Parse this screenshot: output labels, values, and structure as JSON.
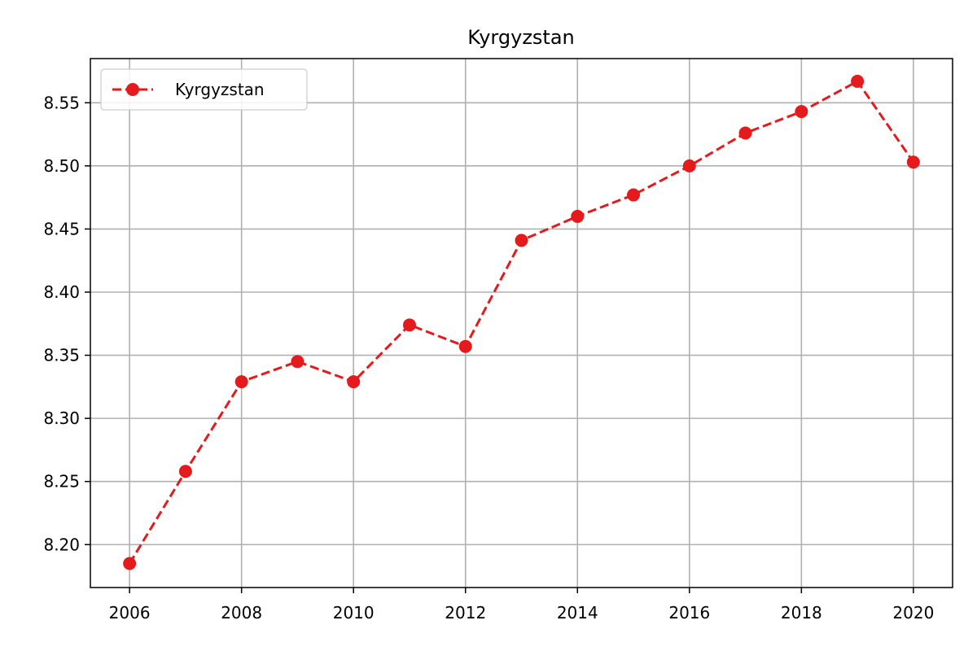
{
  "chart_data": {
    "type": "line",
    "title": "Kyrgyzstan",
    "xlabel": "",
    "ylabel": "",
    "x": [
      2006,
      2007,
      2008,
      2009,
      2010,
      2011,
      2012,
      2013,
      2014,
      2015,
      2016,
      2017,
      2018,
      2019,
      2020
    ],
    "series": [
      {
        "name": "Kyrgyzstan",
        "values": [
          8.185,
          8.258,
          8.329,
          8.345,
          8.329,
          8.374,
          8.357,
          8.441,
          8.46,
          8.477,
          8.5,
          8.526,
          8.543,
          8.567,
          8.503
        ],
        "color": "#e41a1c",
        "line_style": "dashed",
        "marker": "circle"
      }
    ],
    "xlim": [
      2005.3,
      2020.7
    ],
    "ylim": [
      8.166,
      8.585
    ],
    "xticks": [
      2006,
      2008,
      2010,
      2012,
      2014,
      2016,
      2018,
      2020
    ],
    "yticks": [
      8.2,
      8.25,
      8.3,
      8.35,
      8.4,
      8.45,
      8.5,
      8.55
    ],
    "ytick_labels": [
      "8.20",
      "8.25",
      "8.30",
      "8.35",
      "8.40",
      "8.45",
      "8.50",
      "8.55"
    ],
    "grid": true,
    "legend_position": "top-left"
  }
}
